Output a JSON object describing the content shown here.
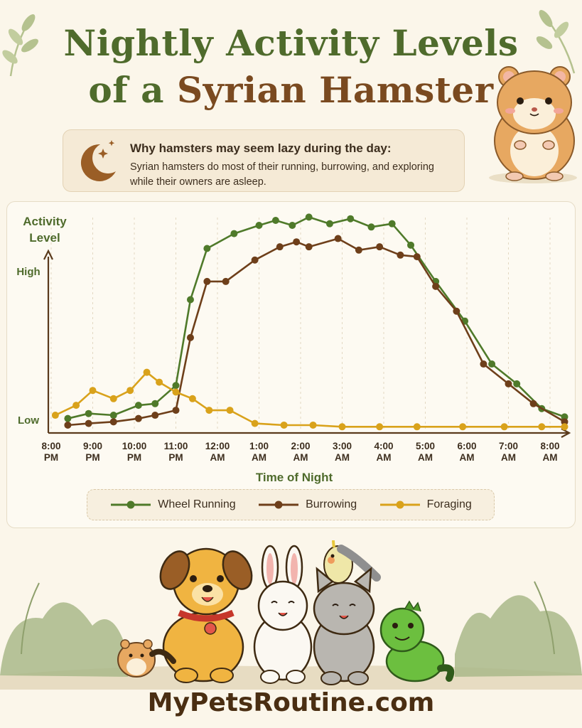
{
  "title": {
    "line1": "Nightly Activity Levels",
    "line2a": "of a ",
    "line2b": "Syrian Hamster"
  },
  "callout": {
    "heading": "Why hamsters may seem lazy during the day:",
    "body": "Syrian hamsters do most of their running, burrowing, and exploring while their owners are asleep.",
    "icon": "moon-stars-icon"
  },
  "chart_data": {
    "type": "line",
    "ylabel": "Activity Level",
    "xlabel": "Time of Night",
    "y_ticks": [
      {
        "label": "High",
        "value": 9
      },
      {
        "label": "Low",
        "value": 0
      }
    ],
    "ylim": [
      -0.4,
      12.3
    ],
    "xlim": [
      0,
      12.2
    ],
    "x_ticks": [
      {
        "x": 0,
        "line1": "8:00",
        "line2": "PM"
      },
      {
        "x": 1,
        "line1": "9:00",
        "line2": "PM"
      },
      {
        "x": 2,
        "line1": "10:00",
        "line2": "PM"
      },
      {
        "x": 3,
        "line1": "11:00",
        "line2": "PM"
      },
      {
        "x": 4,
        "line1": "12:00",
        "line2": "AM"
      },
      {
        "x": 5,
        "line1": "1:00",
        "line2": "AM"
      },
      {
        "x": 6,
        "line1": "2:00",
        "line2": "AM"
      },
      {
        "x": 7,
        "line1": "3:00",
        "line2": "AM"
      },
      {
        "x": 8,
        "line1": "4:00",
        "line2": "AM"
      },
      {
        "x": 9,
        "line1": "5:00",
        "line2": "AM"
      },
      {
        "x": 10,
        "line1": "6:00",
        "line2": "AM"
      },
      {
        "x": 11,
        "line1": "7:00",
        "line2": "AM"
      },
      {
        "x": 12,
        "line1": "8:00",
        "line2": "AM"
      }
    ],
    "grid": "vertical dashed",
    "series": [
      {
        "name": "Wheel Running",
        "color": "#4f7a2a",
        "points": [
          [
            0.4,
            0.1
          ],
          [
            0.9,
            0.4
          ],
          [
            1.5,
            0.3
          ],
          [
            2.1,
            0.9
          ],
          [
            2.5,
            1.0
          ],
          [
            3.0,
            2.1
          ],
          [
            3.35,
            7.3
          ],
          [
            3.75,
            10.4
          ],
          [
            4.4,
            11.3
          ],
          [
            5.0,
            11.8
          ],
          [
            5.4,
            12.1
          ],
          [
            5.8,
            11.8
          ],
          [
            6.2,
            12.3
          ],
          [
            6.7,
            11.9
          ],
          [
            7.2,
            12.2
          ],
          [
            7.7,
            11.7
          ],
          [
            8.2,
            11.9
          ],
          [
            8.65,
            10.6
          ],
          [
            9.25,
            8.4
          ],
          [
            9.95,
            6.0
          ],
          [
            10.6,
            3.4
          ],
          [
            11.2,
            2.2
          ],
          [
            11.8,
            0.7
          ],
          [
            12.35,
            0.2
          ]
        ]
      },
      {
        "name": "Burrowing",
        "color": "#6e3f1a",
        "points": [
          [
            0.4,
            -0.3
          ],
          [
            0.9,
            -0.2
          ],
          [
            1.5,
            -0.1
          ],
          [
            2.1,
            0.1
          ],
          [
            2.5,
            0.3
          ],
          [
            3.0,
            0.6
          ],
          [
            3.35,
            5.0
          ],
          [
            3.75,
            8.4
          ],
          [
            4.2,
            8.4
          ],
          [
            4.9,
            9.7
          ],
          [
            5.5,
            10.5
          ],
          [
            5.9,
            10.8
          ],
          [
            6.2,
            10.5
          ],
          [
            6.9,
            11.0
          ],
          [
            7.4,
            10.3
          ],
          [
            7.9,
            10.5
          ],
          [
            8.4,
            10.0
          ],
          [
            8.8,
            9.9
          ],
          [
            9.25,
            8.1
          ],
          [
            9.75,
            6.6
          ],
          [
            10.4,
            3.4
          ],
          [
            11.0,
            2.2
          ],
          [
            11.6,
            1.0
          ],
          [
            12.35,
            -0.1
          ]
        ]
      },
      {
        "name": "Foraging",
        "color": "#d9a21b",
        "points": [
          [
            0.1,
            0.3
          ],
          [
            0.6,
            0.9
          ],
          [
            1.0,
            1.8
          ],
          [
            1.5,
            1.3
          ],
          [
            1.9,
            1.8
          ],
          [
            2.3,
            2.9
          ],
          [
            2.6,
            2.3
          ],
          [
            3.0,
            1.7
          ],
          [
            3.4,
            1.3
          ],
          [
            3.8,
            0.6
          ],
          [
            4.3,
            0.6
          ],
          [
            4.9,
            -0.2
          ],
          [
            5.6,
            -0.3
          ],
          [
            6.3,
            -0.3
          ],
          [
            7.0,
            -0.4
          ],
          [
            7.9,
            -0.4
          ],
          [
            8.8,
            -0.4
          ],
          [
            9.9,
            -0.4
          ],
          [
            10.9,
            -0.4
          ],
          [
            11.8,
            -0.4
          ],
          [
            12.35,
            -0.4
          ]
        ]
      }
    ]
  },
  "legend": [
    {
      "label": "Wheel Running",
      "color": "#4f7a2a"
    },
    {
      "label": "Burrowing",
      "color": "#6e3f1a"
    },
    {
      "label": "Foraging",
      "color": "#d9a21b"
    }
  ],
  "footer": {
    "brand": "MyPetsRoutine.com"
  },
  "illustrations": {
    "top_right": "hamster-icon",
    "bottom": [
      "hamster-icon",
      "dog-icon",
      "rabbit-icon",
      "cockatiel-icon",
      "cat-icon",
      "lizard-icon"
    ]
  }
}
